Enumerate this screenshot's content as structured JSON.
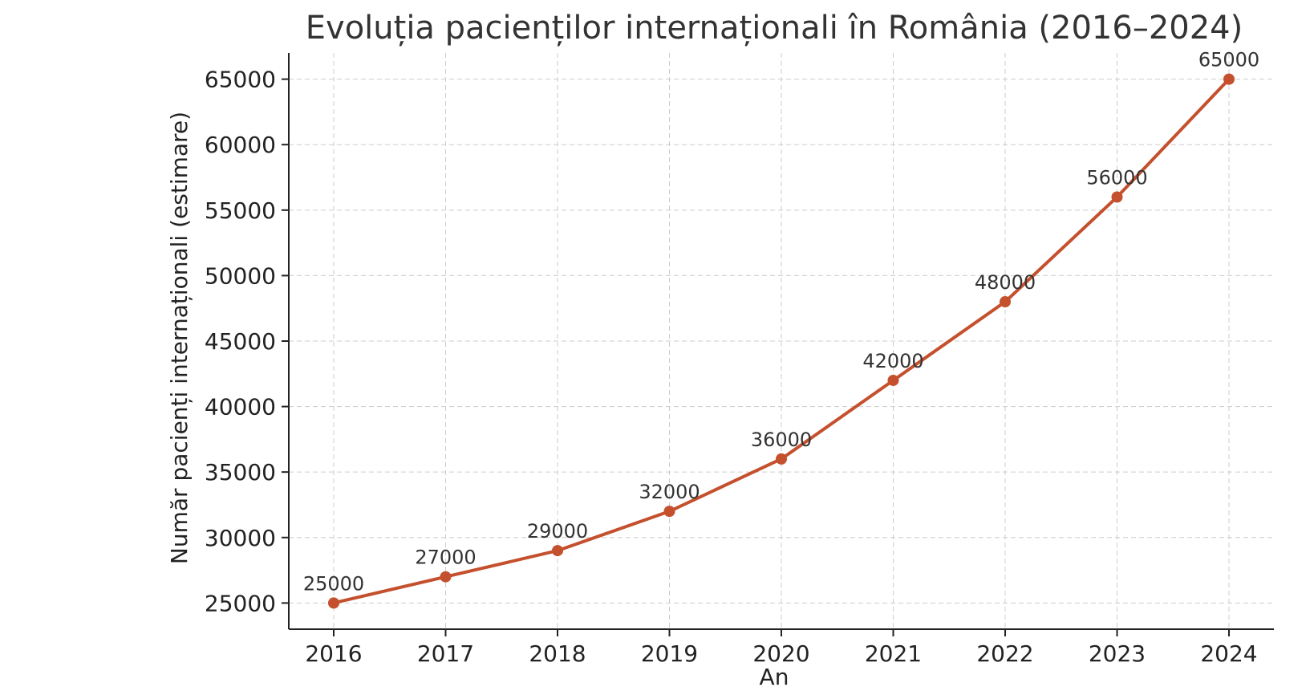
{
  "chart_data": {
    "type": "line",
    "title": "Evoluția pacienților internaționali în România (2016–2024)",
    "xlabel": "An",
    "ylabel": "Număr pacienți internaționali (estimare)",
    "x": [
      "2016",
      "2017",
      "2018",
      "2019",
      "2020",
      "2021",
      "2022",
      "2023",
      "2024"
    ],
    "y_ticks": [
      "25000",
      "30000",
      "35000",
      "40000",
      "45000",
      "50000",
      "55000",
      "60000",
      "65000"
    ],
    "ylim": [
      23000,
      67000
    ],
    "grid": true,
    "series": [
      {
        "values": [
          25000,
          27000,
          29000,
          32000,
          36000,
          42000,
          48000,
          56000,
          65000
        ],
        "labels": [
          "25000",
          "27000",
          "29000",
          "32000",
          "36000",
          "42000",
          "48000",
          "56000",
          "65000"
        ],
        "color": "#c4502d"
      }
    ]
  }
}
